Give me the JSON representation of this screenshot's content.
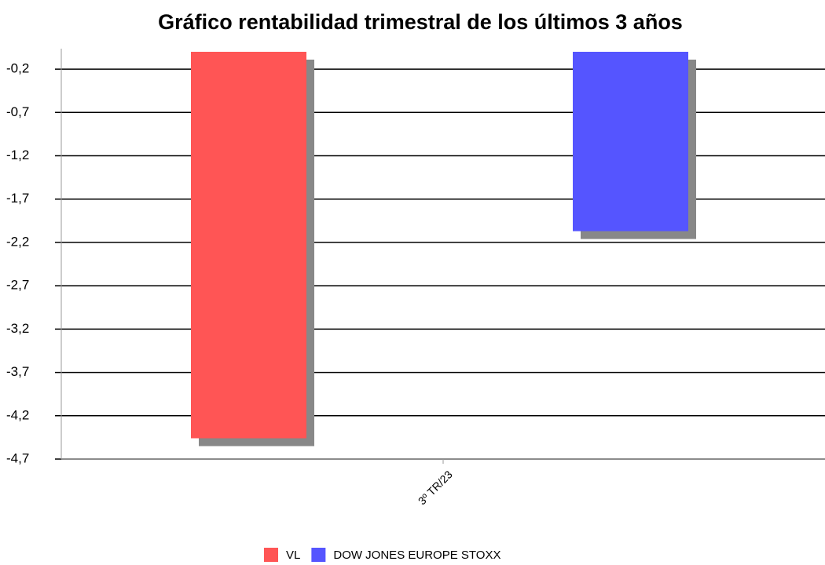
{
  "chart_data": {
    "type": "bar",
    "title": "Gráfico rentabilidad trimestral de los últimos 3 años",
    "categories": [
      "3º TR/23"
    ],
    "series": [
      {
        "name": "VL",
        "color": "#ff5555",
        "values": [
          -4.46
        ]
      },
      {
        "name": "DOW JONES EUROPE STOXX",
        "color": "#5555ff",
        "values": [
          -2.07
        ]
      }
    ],
    "ylim": [
      -4.7,
      0
    ],
    "yticks": [
      {
        "value": -0.2,
        "label": "-0,2"
      },
      {
        "value": -0.7,
        "label": "-0,7"
      },
      {
        "value": -1.2,
        "label": "-1,2"
      },
      {
        "value": -1.7,
        "label": "-1,7"
      },
      {
        "value": -2.2,
        "label": "-2,2"
      },
      {
        "value": -2.7,
        "label": "-2,7"
      },
      {
        "value": -3.2,
        "label": "-3,2"
      },
      {
        "value": -3.7,
        "label": "-3,7"
      },
      {
        "value": -4.2,
        "label": "-4,2"
      },
      {
        "value": -4.7,
        "label": "-4,7"
      }
    ],
    "grid": true,
    "legend": "bottom"
  }
}
